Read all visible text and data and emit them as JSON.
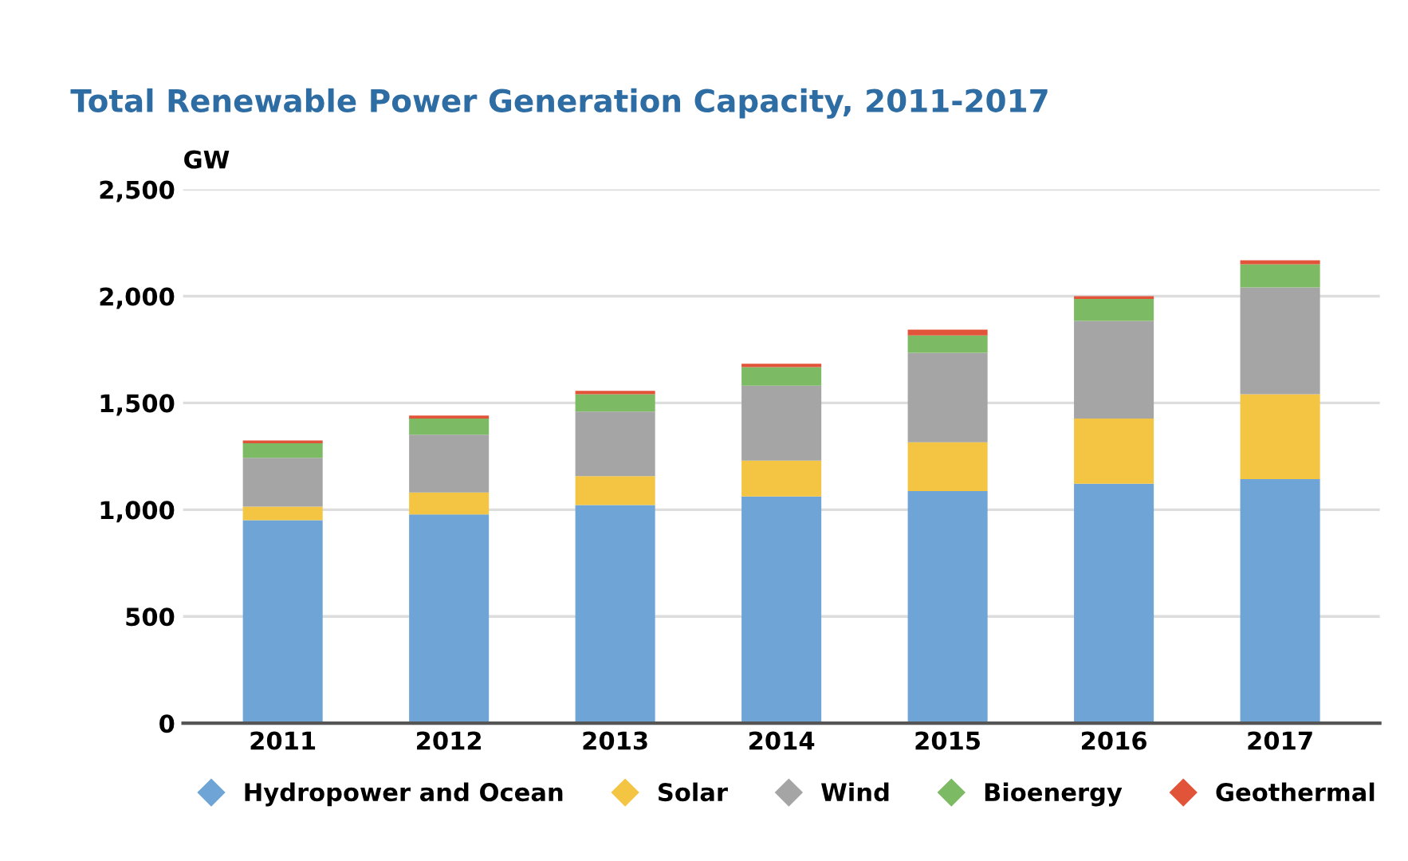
{
  "chart_data": {
    "type": "bar",
    "title": "Total Renewable Power Generation Capacity, 2011-2017",
    "ylabel": "GW",
    "categories": [
      "2011",
      "2012",
      "2013",
      "2014",
      "2015",
      "2016",
      "2017"
    ],
    "stacked": true,
    "series": [
      {
        "name": "Hydropower and Ocean",
        "color": "#6fa5d6",
        "values": [
          951,
          978,
          1022,
          1062,
          1087,
          1122,
          1143
        ]
      },
      {
        "name": "Solar",
        "color": "#f4c443",
        "values": [
          63,
          103,
          135,
          168,
          229,
          305,
          398
        ]
      },
      {
        "name": "Wind",
        "color": "#a5a5a5",
        "values": [
          229,
          270,
          303,
          351,
          419,
          457,
          500
        ]
      },
      {
        "name": "Bioenergy",
        "color": "#7cba63",
        "values": [
          68,
          76,
          81,
          87,
          81,
          103,
          108
        ]
      },
      {
        "name": "Geothermal",
        "color": "#e2543a",
        "values": [
          13,
          14,
          16,
          16,
          27,
          13,
          19
        ]
      }
    ],
    "ylim": [
      0,
      2500
    ],
    "yticks": [
      0,
      500,
      {
        "value": 1000,
        "label": "1,000"
      },
      {
        "value": 1500,
        "label": "1,500"
      },
      {
        "value": 2000,
        "label": "2,000"
      },
      {
        "value": 2500,
        "label": "2,500"
      }
    ],
    "grid": "y",
    "legend": "bottom",
    "marker": "diamond"
  }
}
